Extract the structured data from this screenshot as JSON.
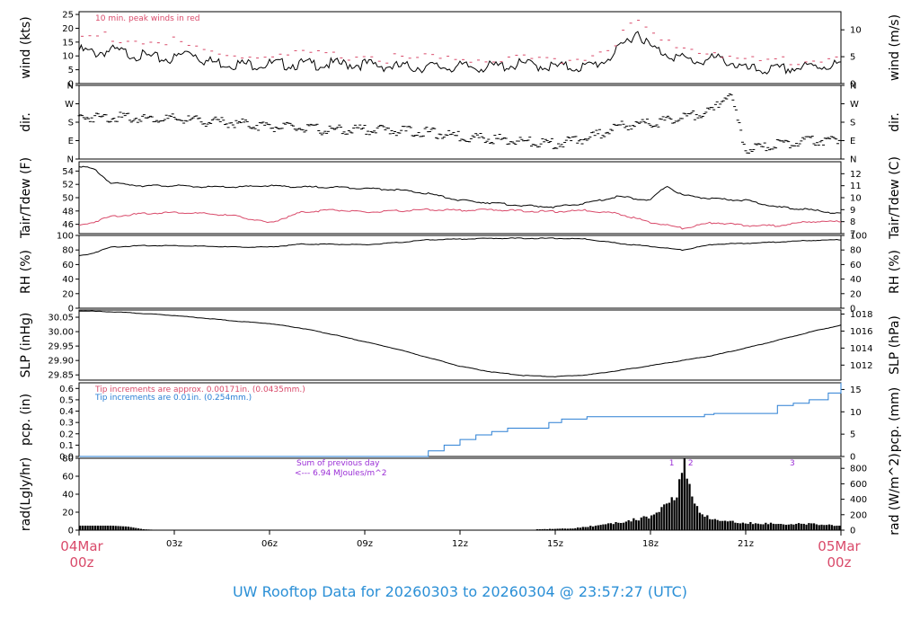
{
  "footer": {
    "title": "UW Rooftop Data for 20260303  to  20260304 @ 23:57:27  (UTC)"
  },
  "colors": {
    "black": "#000000",
    "red": "#d94a6a",
    "blue": "#2a7fd4",
    "purple": "#9b2fd6",
    "footer": "#2a8fd6"
  },
  "x_axis": {
    "range_hours": [
      0,
      24
    ],
    "ticks": [
      {
        "h": 3,
        "label": "03z"
      },
      {
        "h": 6,
        "label": "06z"
      },
      {
        "h": 9,
        "label": "09z"
      },
      {
        "h": 12,
        "label": "12z"
      },
      {
        "h": 15,
        "label": "15z"
      },
      {
        "h": 18,
        "label": "18z"
      },
      {
        "h": 21,
        "label": "21z"
      }
    ],
    "start_label": [
      "04Mar",
      "00z"
    ],
    "end_label": [
      "05Mar",
      "00z"
    ]
  },
  "chart_data": [
    {
      "type": "line",
      "id": "wind",
      "ylabel": "wind (kts)",
      "ylabel_right": "wind (m/s)",
      "ylim": [
        0,
        26
      ],
      "yticks": [
        0,
        5,
        10,
        15,
        20,
        25
      ],
      "right_ticks": [
        {
          "label": "0",
          "value": 0
        },
        {
          "label": "5",
          "value": 9.72
        },
        {
          "label": "10",
          "value": 19.44
        }
      ],
      "annotation": "10 min. peak winds in red",
      "series": [
        {
          "name": "wind",
          "color": "#000000",
          "x": [
            0,
            0.5,
            1,
            1.5,
            2,
            2.5,
            3,
            3.5,
            4,
            5,
            6,
            7,
            8,
            9,
            10,
            11,
            12,
            13,
            14,
            15,
            16,
            16.5,
            17,
            17.3,
            17.6,
            18,
            18.5,
            19,
            19.5,
            20,
            20.5,
            21,
            22,
            23,
            24
          ],
          "y": [
            12,
            11,
            12,
            11,
            10,
            9,
            9,
            12,
            8,
            7,
            7,
            7,
            7,
            7,
            6,
            6,
            6,
            6,
            7,
            6,
            6,
            8,
            12,
            16,
            19,
            13,
            11,
            9,
            8,
            9,
            8,
            5,
            5,
            6,
            7
          ]
        },
        {
          "name": "peak",
          "color": "#d94a6a",
          "x": [
            0,
            1,
            2,
            3,
            4,
            5,
            6,
            7,
            8,
            9,
            10,
            11,
            12,
            13,
            14,
            15,
            16,
            17,
            17.5,
            18,
            18.5,
            19,
            20,
            21,
            22,
            23,
            24
          ],
          "y": [
            17,
            17,
            15,
            15,
            11,
            10,
            10,
            10,
            10,
            10,
            9,
            9,
            9,
            9,
            9,
            9,
            9,
            15,
            24,
            18,
            14,
            13,
            12,
            8,
            8,
            9,
            10
          ]
        }
      ]
    },
    {
      "type": "scatter",
      "id": "dir",
      "ylabel": "dir.",
      "ylabel_right": "dir.",
      "ylim": [
        0,
        360
      ],
      "ytick_labels": [
        {
          "label": "N",
          "value": 0
        },
        {
          "label": "E",
          "value": 90
        },
        {
          "label": "S",
          "value": 180
        },
        {
          "label": "W",
          "value": 270
        },
        {
          "label": "N",
          "value": 360
        }
      ],
      "series": [
        {
          "name": "direction",
          "color": "#000000",
          "x": [
            0,
            1,
            2,
            3,
            4,
            5,
            6,
            7,
            8,
            9,
            10,
            11,
            12,
            13,
            14,
            15,
            16,
            17,
            18,
            19,
            20,
            20.5,
            21,
            22,
            23,
            24
          ],
          "y": [
            205,
            205,
            200,
            195,
            185,
            175,
            160,
            150,
            140,
            145,
            140,
            130,
            110,
            100,
            85,
            75,
            100,
            160,
            175,
            200,
            240,
            330,
            45,
            70,
            90,
            95
          ]
        }
      ]
    },
    {
      "type": "line",
      "id": "temp",
      "ylabel": "Tair/Tdew (F)",
      "ylabel_right": "Tair/Tdew (C)",
      "ylim": [
        44.6,
        55.4
      ],
      "yticks": [
        46,
        48,
        50,
        52,
        54
      ],
      "right_ticks": [
        {
          "label": "7",
          "value": 44.6
        },
        {
          "label": "8",
          "value": 46.4
        },
        {
          "label": "9",
          "value": 48.2
        },
        {
          "label": "10",
          "value": 50
        },
        {
          "label": "11",
          "value": 51.8
        },
        {
          "label": "12",
          "value": 53.6
        }
      ],
      "series": [
        {
          "name": "Tair",
          "color": "#000000",
          "x": [
            0,
            0.5,
            1,
            2,
            3,
            4,
            5,
            6,
            7,
            8,
            9,
            10,
            11,
            12,
            13,
            14,
            15,
            16,
            17,
            18,
            18.5,
            19,
            20,
            21,
            22,
            23,
            24
          ],
          "y": [
            54.8,
            54.2,
            52.2,
            51.8,
            51.8,
            51.6,
            51.6,
            51.8,
            51.6,
            51.6,
            51.4,
            51.2,
            50.6,
            49.6,
            49.2,
            48.8,
            48.6,
            49.2,
            50.2,
            49.6,
            51.8,
            50.4,
            49.8,
            49.6,
            48.6,
            48.2,
            47.6
          ]
        },
        {
          "name": "Tdew",
          "color": "#d94a6a",
          "x": [
            0,
            0.5,
            1,
            2,
            3,
            4,
            5,
            6,
            7,
            8,
            9,
            10,
            11,
            12,
            13,
            14,
            15,
            16,
            17,
            18,
            18.5,
            19,
            20,
            21,
            22,
            23,
            24
          ],
          "y": [
            45.8,
            46.4,
            47.2,
            47.6,
            47.8,
            47.6,
            47.2,
            46.2,
            47.8,
            48.2,
            47.8,
            48.0,
            48.2,
            48.1,
            48.2,
            48.0,
            47.9,
            48.1,
            47.6,
            46.3,
            45.9,
            45.4,
            46.3,
            45.8,
            45.8,
            46.4,
            46.4
          ]
        }
      ]
    },
    {
      "type": "line",
      "id": "rh",
      "ylabel": "RH (%)",
      "ylabel_right": "RH (%)",
      "ylim": [
        0,
        100
      ],
      "yticks": [
        0,
        20,
        40,
        60,
        80,
        100
      ],
      "right_ticks": [
        {
          "label": "0",
          "value": 0
        },
        {
          "label": "20",
          "value": 20
        },
        {
          "label": "40",
          "value": 40
        },
        {
          "label": "60",
          "value": 60
        },
        {
          "label": "80",
          "value": 80
        },
        {
          "label": "100",
          "value": 100
        }
      ],
      "series": [
        {
          "name": "RH",
          "color": "#000000",
          "x": [
            0,
            0.3,
            0.6,
            1,
            2,
            3,
            4,
            5,
            6,
            7,
            8,
            9,
            10,
            11,
            12,
            13,
            14,
            15,
            16,
            17,
            18,
            19,
            20,
            21,
            22,
            23,
            24
          ],
          "y": [
            72,
            74,
            78,
            84,
            86,
            86,
            85,
            84,
            84,
            88,
            88,
            87,
            90,
            94,
            95,
            96,
            96,
            96,
            95,
            89,
            85,
            80,
            88,
            89,
            91,
            93,
            94
          ]
        }
      ]
    },
    {
      "type": "line",
      "id": "slp",
      "ylabel": "SLP (inHg)",
      "ylabel_right": "SLP (hPa)",
      "ylim": [
        29.832,
        30.075
      ],
      "yticks": [
        29.85,
        29.9,
        29.95,
        30.0,
        30.05
      ],
      "right_ticks": [
        {
          "label": "1012",
          "value": 29.884
        },
        {
          "label": "1014",
          "value": 29.943
        },
        {
          "label": "1016",
          "value": 30.002
        },
        {
          "label": "1018",
          "value": 30.061
        }
      ],
      "series": [
        {
          "name": "SLP",
          "color": "#000000",
          "x": [
            0,
            1,
            2,
            3,
            4,
            5,
            6,
            7,
            8,
            9,
            10,
            11,
            12,
            13,
            14,
            15,
            16,
            17,
            18,
            19,
            20,
            21,
            22,
            23,
            24
          ],
          "y": [
            30.072,
            30.069,
            30.063,
            30.056,
            30.046,
            30.036,
            30.028,
            30.012,
            29.99,
            29.965,
            29.94,
            29.91,
            29.88,
            29.86,
            29.848,
            29.844,
            29.85,
            29.865,
            29.882,
            29.9,
            29.918,
            29.943,
            29.97,
            29.998,
            30.023
          ]
        }
      ]
    },
    {
      "type": "line",
      "id": "pcp",
      "ylabel": "pcp. (in)",
      "ylabel_right": "pcp. (mm)",
      "ylim": [
        0,
        0.65
      ],
      "yticks": [
        0,
        0.1,
        0.2,
        0.3,
        0.4,
        0.5,
        0.6
      ],
      "right_ticks": [
        {
          "label": "0",
          "value": 0
        },
        {
          "label": "5",
          "value": 0.197
        },
        {
          "label": "10",
          "value": 0.394
        },
        {
          "label": "15",
          "value": 0.591
        }
      ],
      "annotations": [
        {
          "text": "Tip increments are approx. 0.00171in. (0.0435mm.)",
          "color": "#d94a6a"
        },
        {
          "text": "Tip increments are 0.01in. (0.254mm.)",
          "color": "#2a7fd4"
        }
      ],
      "series": [
        {
          "name": "precip",
          "color": "#2a7fd4",
          "x": [
            0,
            10.4,
            11.0,
            11.5,
            12,
            12.5,
            13,
            13.5,
            14.3,
            14.8,
            15.2,
            16,
            17,
            18,
            19,
            19.7,
            20,
            21,
            22,
            22.5,
            23,
            23.6,
            24
          ],
          "y": [
            0,
            0,
            0.05,
            0.1,
            0.15,
            0.19,
            0.22,
            0.25,
            0.25,
            0.3,
            0.33,
            0.35,
            0.35,
            0.35,
            0.35,
            0.37,
            0.38,
            0.38,
            0.45,
            0.47,
            0.5,
            0.56,
            0.65
          ]
        }
      ]
    },
    {
      "type": "bar",
      "id": "rad",
      "ylabel": "rad(Lgly/hr)",
      "ylabel_right": "rad (W/m^2)",
      "ylim": [
        0,
        80
      ],
      "yticks": [
        0,
        20,
        40,
        60,
        80
      ],
      "right_ticks": [
        {
          "label": "0",
          "value": 0
        },
        {
          "label": "200",
          "value": 17.2
        },
        {
          "label": "400",
          "value": 34.4
        },
        {
          "label": "600",
          "value": 51.6
        },
        {
          "label": "800",
          "value": 68.8
        }
      ],
      "annotation": [
        "Sum of previous day",
        "<--- 6.94 MJoules/m^2"
      ],
      "markers": [
        {
          "label": "1",
          "h": 18.7
        },
        {
          "label": "2",
          "h": 19.3
        },
        {
          "label": "3",
          "h": 22.5
        }
      ],
      "series": [
        {
          "name": "radiation",
          "color": "#000000",
          "x": [
            0,
            0.5,
            1,
            1.5,
            2,
            2.3,
            14.5,
            15,
            15.5,
            16,
            16.5,
            17,
            17.5,
            18,
            18.4,
            18.8,
            19,
            19.2,
            19.4,
            19.8,
            20.2,
            21,
            22,
            23,
            24
          ],
          "y": [
            5,
            5,
            5,
            4,
            1,
            0.5,
            1,
            1.5,
            2,
            4,
            6,
            9,
            12,
            15,
            25,
            42,
            78,
            50,
            25,
            14,
            10,
            8,
            7,
            7,
            5
          ]
        }
      ]
    }
  ]
}
